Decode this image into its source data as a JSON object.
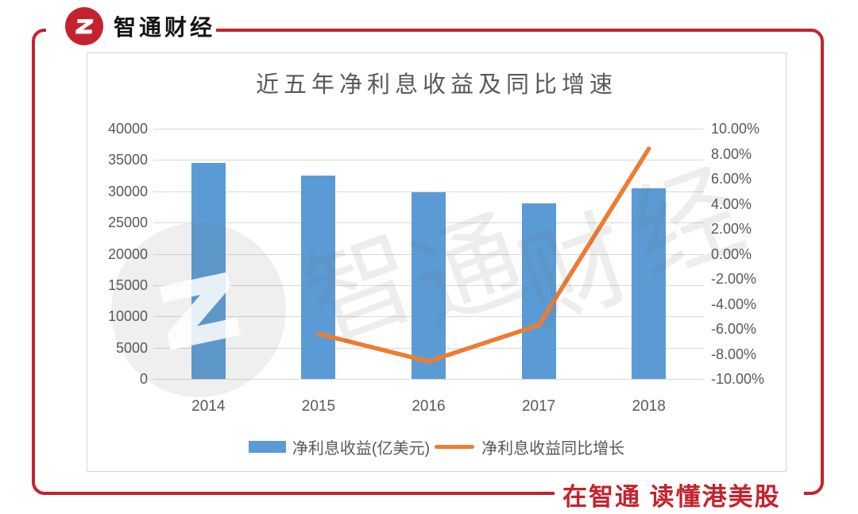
{
  "brand": {
    "logo_text": "智通财经",
    "slogan": "在智通  读懂港美股",
    "red": "#c4232e"
  },
  "watermark": {
    "chars": [
      "智",
      "通",
      "财",
      "经"
    ]
  },
  "chart_data": {
    "type": "bar",
    "subtype": "bar+line combo, dual axis",
    "title": "近五年净利息收益及同比增速",
    "categories": [
      "2014",
      "2015",
      "2016",
      "2017",
      "2018"
    ],
    "series": [
      {
        "name": "净利息收益(亿美元)",
        "type": "bar",
        "axis": "left",
        "color": "#5b9bd5",
        "values": [
          34600,
          32550,
          29850,
          28100,
          30500
        ]
      },
      {
        "name": "净利息收益同比增长",
        "type": "line",
        "axis": "right",
        "color": "#ed7d31",
        "values": [
          null,
          -6.4,
          -8.6,
          -5.7,
          8.4
        ]
      }
    ],
    "left_axis": {
      "min": 0,
      "max": 40000,
      "step": 5000,
      "ticks": [
        "40000",
        "35000",
        "30000",
        "25000",
        "20000",
        "15000",
        "10000",
        "5000",
        "0"
      ]
    },
    "right_axis": {
      "min": -10,
      "max": 10,
      "step": 2,
      "ticks": [
        "10.00%",
        "8.00%",
        "6.00%",
        "4.00%",
        "2.00%",
        "0.00%",
        "-2.00%",
        "-4.00%",
        "-6.00%",
        "-8.00%",
        "-10.00%"
      ]
    },
    "grid": true,
    "gridline_color": "#d9d9d9",
    "legend_position": "bottom",
    "text_color": "#595959"
  }
}
